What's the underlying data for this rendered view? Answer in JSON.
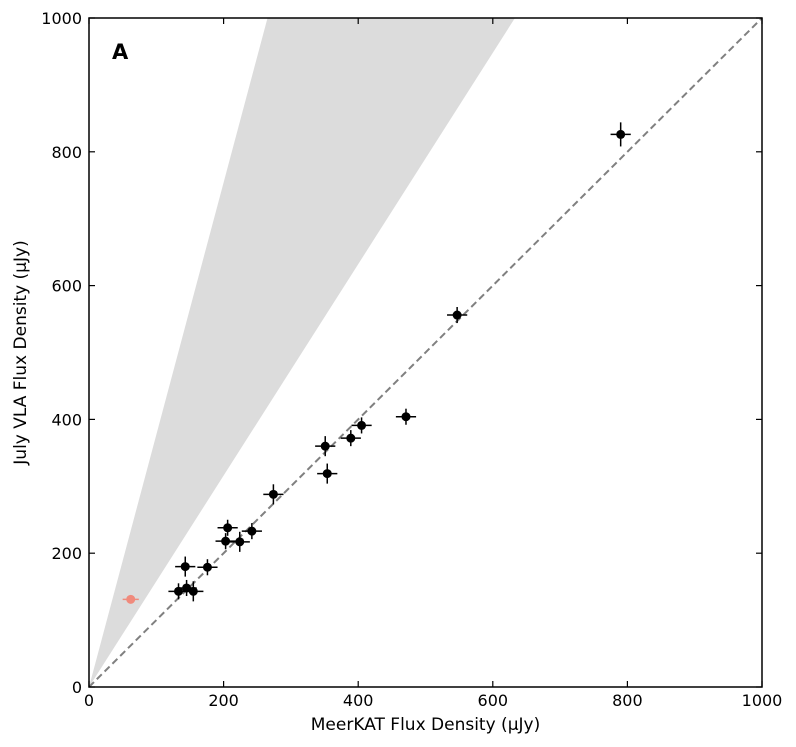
{
  "chart_data": {
    "type": "scatter",
    "panel_label": "A",
    "xlabel": "MeerKAT Flux Density (μJy)",
    "ylabel": "July VLA Flux Density (μJy)",
    "xlim": [
      0,
      1000
    ],
    "ylim": [
      0,
      1000
    ],
    "xticks": [
      0,
      200,
      400,
      600,
      800,
      1000
    ],
    "yticks": [
      0,
      200,
      400,
      600,
      800,
      1000
    ],
    "grid": false,
    "reference_line": {
      "slope": 1,
      "style": "dashed",
      "color": "#808080"
    },
    "shaded_band": {
      "slope_low": 1.58,
      "slope_high": 3.77,
      "color": "#dcdcdc"
    },
    "series": [
      {
        "color": "#000000",
        "points": [
          {
            "x": 790,
            "y": 826,
            "xerr": 15,
            "yerr": 18
          },
          {
            "x": 547,
            "y": 556,
            "xerr": 15,
            "yerr": 12
          },
          {
            "x": 471,
            "y": 404,
            "xerr": 15,
            "yerr": 12
          },
          {
            "x": 405,
            "y": 391,
            "xerr": 15,
            "yerr": 12
          },
          {
            "x": 389,
            "y": 372,
            "xerr": 15,
            "yerr": 12
          },
          {
            "x": 351,
            "y": 360,
            "xerr": 15,
            "yerr": 15
          },
          {
            "x": 354,
            "y": 319,
            "xerr": 15,
            "yerr": 15
          },
          {
            "x": 274,
            "y": 288,
            "xerr": 15,
            "yerr": 15
          },
          {
            "x": 242,
            "y": 233,
            "xerr": 15,
            "yerr": 12
          },
          {
            "x": 206,
            "y": 238,
            "xerr": 15,
            "yerr": 12
          },
          {
            "x": 203,
            "y": 218,
            "xerr": 15,
            "yerr": 12
          },
          {
            "x": 224,
            "y": 217,
            "xerr": 15,
            "yerr": 15
          },
          {
            "x": 176,
            "y": 179,
            "xerr": 15,
            "yerr": 12
          },
          {
            "x": 143,
            "y": 180,
            "xerr": 15,
            "yerr": 15
          },
          {
            "x": 133,
            "y": 143,
            "xerr": 15,
            "yerr": 12
          },
          {
            "x": 145,
            "y": 148,
            "xerr": 15,
            "yerr": 12
          },
          {
            "x": 155,
            "y": 143,
            "xerr": 15,
            "yerr": 15
          }
        ]
      },
      {
        "color": "#f08a7c",
        "points": [
          {
            "x": 62,
            "y": 131,
            "xerr": 12,
            "yerr": 6
          }
        ]
      }
    ]
  }
}
